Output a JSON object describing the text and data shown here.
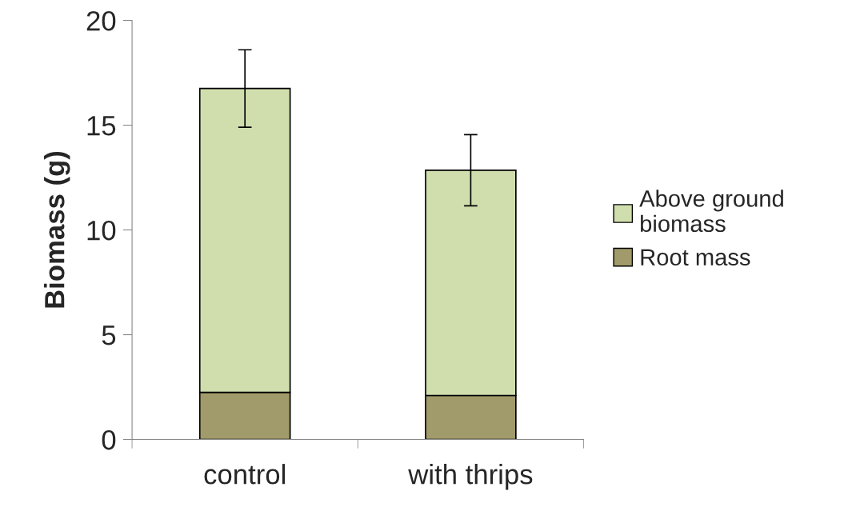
{
  "chart_data": {
    "type": "bar",
    "stacked": true,
    "ylabel": "Biomass (g)",
    "categories": [
      "control",
      "with thrips"
    ],
    "series": [
      {
        "name": "Root mass",
        "color": "#a19a6a",
        "values": [
          2.25,
          2.1
        ]
      },
      {
        "name": "Above ground biomass",
        "color": "#d0deae",
        "values": [
          14.5,
          10.75
        ],
        "errors": [
          1.85,
          1.7
        ]
      }
    ],
    "ylim": [
      0,
      20
    ],
    "yticks": [
      0,
      5,
      10,
      15,
      20
    ],
    "grid": false,
    "legend": "right"
  }
}
